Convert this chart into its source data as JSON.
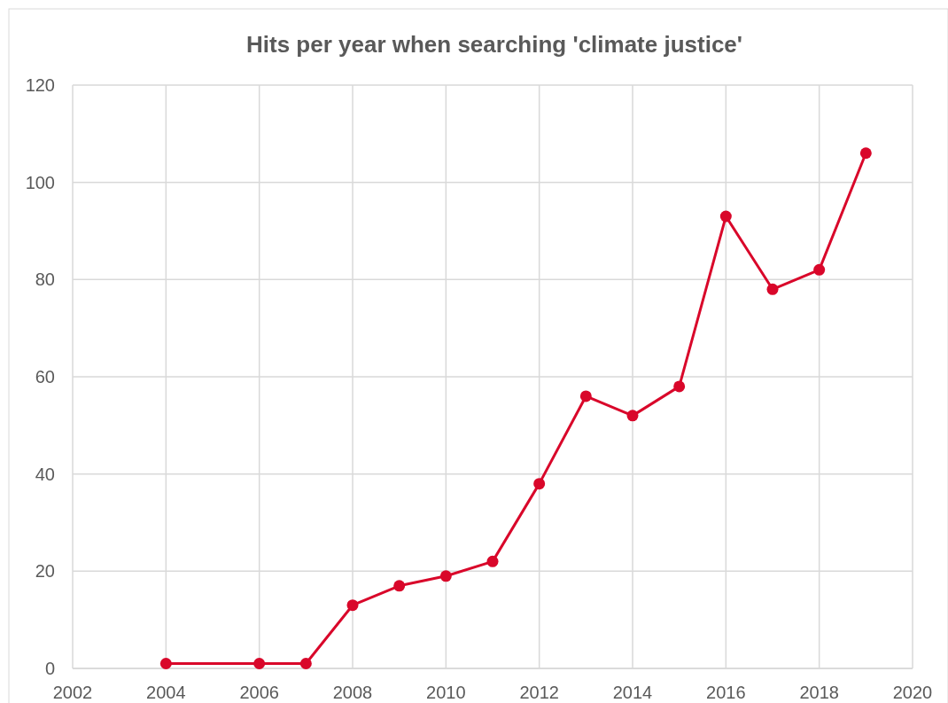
{
  "chart_data": {
    "type": "line",
    "title": "Hits per year when searching 'climate justice'",
    "x": [
      2004,
      2006,
      2007,
      2008,
      2009,
      2010,
      2011,
      2012,
      2013,
      2014,
      2015,
      2016,
      2017,
      2018,
      2019
    ],
    "series": [
      {
        "color": "#d9072a",
        "values": [
          1,
          1,
          1,
          13,
          17,
          19,
          22,
          38,
          56,
          52,
          58,
          93,
          78,
          82,
          106
        ]
      }
    ],
    "xlim": [
      2002,
      2020
    ],
    "xticks": [
      2002,
      2004,
      2006,
      2008,
      2010,
      2012,
      2014,
      2016,
      2018,
      2020
    ],
    "ylim": [
      0,
      120
    ],
    "yticks": [
      0,
      20,
      40,
      60,
      80,
      100,
      120
    ],
    "grid": true,
    "marker": "circle",
    "line_style": "solid"
  }
}
